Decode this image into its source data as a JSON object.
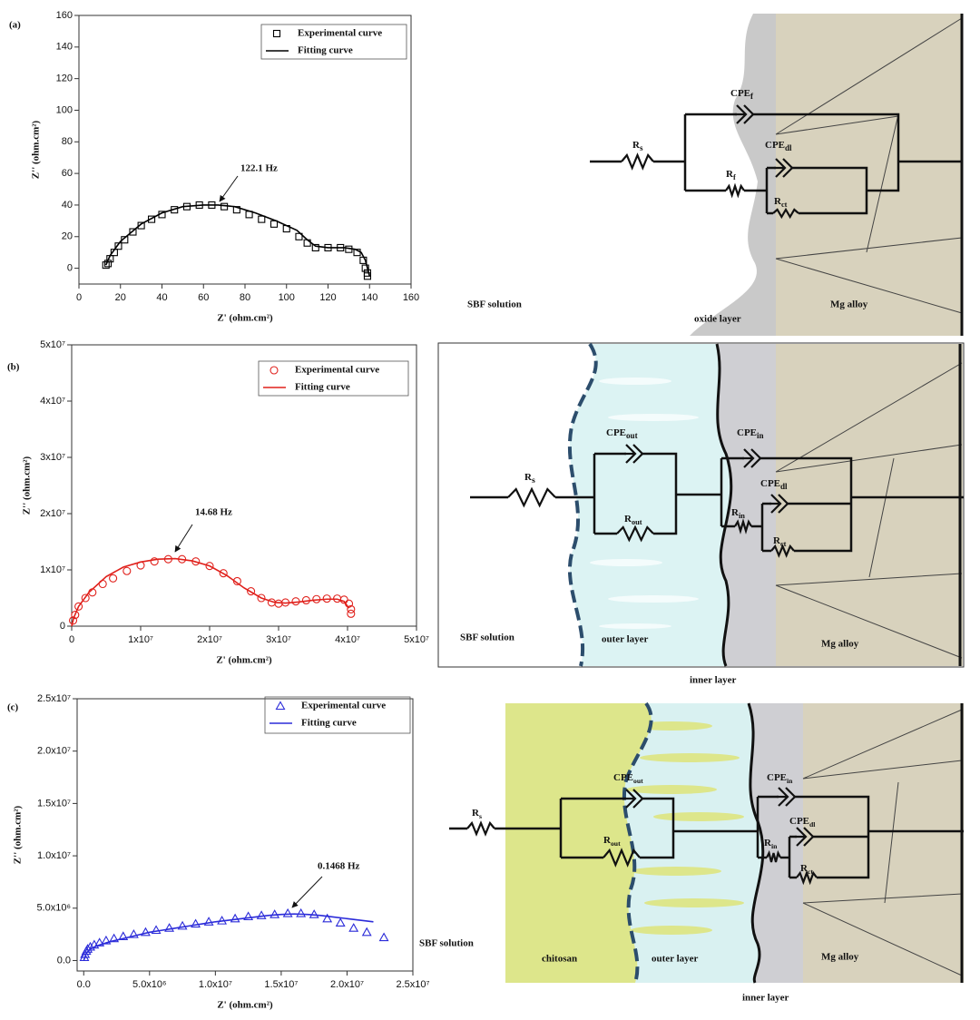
{
  "chart_data": [
    {
      "type": "scatter",
      "panel_label": "(a)",
      "xlabel": "Z' (ohm.cm²)",
      "ylabel": "Z'' (ohm.cm²)",
      "annotation": "122.1 Hz",
      "xlim": [
        0,
        160
      ],
      "ylim": [
        -10,
        160
      ],
      "xticks": [
        0,
        20,
        40,
        60,
        80,
        100,
        120,
        140,
        160
      ],
      "yticks": [
        0,
        20,
        40,
        60,
        80,
        100,
        120,
        140,
        160
      ],
      "legend": "upper right",
      "series": [
        {
          "name": "Experimental curve",
          "color": "#000000",
          "mode": "markers",
          "marker": "square",
          "x": [
            13,
            14,
            15,
            17,
            19,
            22,
            26,
            30,
            35,
            40,
            46,
            52,
            58,
            64,
            70,
            76,
            82,
            88,
            94,
            100,
            106,
            110,
            114,
            120,
            126,
            130,
            134,
            137,
            138,
            139,
            139
          ],
          "values": [
            2,
            3,
            6,
            10,
            14,
            18,
            23,
            27,
            31,
            34,
            37,
            39,
            40,
            40,
            39,
            37,
            34,
            31,
            28,
            25,
            20,
            16,
            13,
            13,
            13,
            12,
            10,
            5,
            0,
            -3,
            -5
          ]
        },
        {
          "name": "Fitting curve",
          "color": "#000000",
          "mode": "line",
          "x": [
            13,
            15,
            20,
            30,
            40,
            50,
            60,
            67,
            75,
            85,
            95,
            105,
            110,
            114,
            120,
            128,
            133,
            136,
            138,
            139,
            140
          ],
          "values": [
            2,
            8,
            17,
            28,
            35,
            39,
            40,
            40,
            39,
            35,
            30,
            24,
            18,
            14,
            13,
            13,
            12,
            10,
            5,
            0,
            -5
          ]
        }
      ]
    },
    {
      "type": "scatter",
      "panel_label": "(b)",
      "xlabel": "Z' (ohm.cm²)",
      "ylabel": "Z'' (ohm.cm²)",
      "annotation": "14.68 Hz",
      "xlim": [
        0,
        50000000.0
      ],
      "ylim": [
        0,
        50000000.0
      ],
      "xticks": [
        0,
        {
          "value": 10000000.0,
          "label": "1x10⁷"
        },
        {
          "value": 20000000.0,
          "label": "2x10⁷"
        },
        {
          "value": 30000000.0,
          "label": "3x10⁷"
        },
        {
          "value": 40000000.0,
          "label": "4x10⁷"
        },
        {
          "value": 50000000.0,
          "label": "5x10⁷"
        }
      ],
      "yticks": [
        0,
        {
          "value": 10000000.0,
          "label": "1x10⁷"
        },
        {
          "value": 20000000.0,
          "label": "2x10⁷"
        },
        {
          "value": 30000000.0,
          "label": "3x10⁷"
        },
        {
          "value": 40000000.0,
          "label": "4x10⁷"
        },
        {
          "value": 50000000.0,
          "label": "5x10⁷"
        }
      ],
      "legend": "upper right",
      "series": [
        {
          "name": "Experimental curve",
          "color": "#e0201b",
          "mode": "markers",
          "marker": "circle",
          "x": [
            200000.0,
            500000.0,
            1000000.0,
            2000000.0,
            3000000.0,
            4500000.0,
            6000000.0,
            8000000.0,
            10000000.0,
            12000000.0,
            14000000.0,
            16000000.0,
            18000000.0,
            20000000.0,
            22000000.0,
            24000000.0,
            26000000.0,
            27500000.0,
            29000000.0,
            30000000.0,
            31000000.0,
            32500000.0,
            34000000.0,
            35500000.0,
            37000000.0,
            38500000.0,
            39500000.0,
            40200000.0,
            40500000.0,
            40500000.0
          ],
          "values": [
            1000000.0,
            2000000.0,
            3500000.0,
            5000000.0,
            6000000.0,
            7500000.0,
            8500000.0,
            9800000.0,
            10800000.0,
            11500000.0,
            11900000.0,
            11900000.0,
            11500000.0,
            10700000.0,
            9400000.0,
            8000000.0,
            6200000.0,
            5000000.0,
            4200000.0,
            4000000.0,
            4200000.0,
            4400000.0,
            4600000.0,
            4800000.0,
            4900000.0,
            4900000.0,
            4700000.0,
            4000000.0,
            3000000.0,
            2200000.0
          ]
        },
        {
          "name": "Fitting curve",
          "color": "#e0201b",
          "mode": "line",
          "x": [
            0,
            300000.0,
            1000000.0,
            2500000.0,
            5000000.0,
            7500000.0,
            10000000.0,
            12500000.0,
            15000000.0,
            17500000.0,
            20000000.0,
            22500000.0,
            25000000.0,
            27500000.0,
            29500000.0,
            31000000.0,
            33000000.0,
            35000000.0,
            37000000.0,
            38500000.0,
            39500000.0,
            40200000.0
          ],
          "values": [
            0,
            1500000.0,
            3500000.0,
            6000000.0,
            8800000.0,
            10500000.0,
            11400000.0,
            11900000.0,
            12000000.0,
            11600000.0,
            10700000.0,
            9000000.0,
            6800000.0,
            5000000.0,
            4200000.0,
            4100000.0,
            4300000.0,
            4600000.0,
            4800000.0,
            4800000.0,
            4400000.0,
            3200000.0
          ]
        }
      ]
    },
    {
      "type": "scatter",
      "panel_label": "(c)",
      "xlabel": "Z' (ohm.cm²)",
      "ylabel": "Z'' (ohm.cm²)",
      "annotation": "0.1468 Hz",
      "xlim": [
        -500000.0,
        25000000.0
      ],
      "ylim": [
        -1000000.0,
        25000000.0
      ],
      "xticks": [
        {
          "value": 0,
          "label": "0.0"
        },
        {
          "value": 5000000.0,
          "label": "5.0x10⁶"
        },
        {
          "value": 10000000.0,
          "label": "1.0x10⁷"
        },
        {
          "value": 15000000.0,
          "label": "1.5x10⁷"
        },
        {
          "value": 20000000.0,
          "label": "2.0x10⁷"
        },
        {
          "value": 25000000.0,
          "label": "2.5x10⁷"
        }
      ],
      "yticks": [
        {
          "value": 0,
          "label": "0.0"
        },
        {
          "value": 5000000.0,
          "label": "5.0x10⁶"
        },
        {
          "value": 10000000.0,
          "label": "1.0x10⁷"
        },
        {
          "value": 15000000.0,
          "label": "1.5x10⁷"
        },
        {
          "value": 20000000.0,
          "label": "2.0x10⁷"
        },
        {
          "value": 25000000.0,
          "label": "2.5x10⁷"
        }
      ],
      "legend": "upper right",
      "series": [
        {
          "name": "Experimental curve",
          "color": "#2b2bd9",
          "mode": "markers",
          "marker": "triangle",
          "x": [
            50000.0,
            100000.0,
            200000.0,
            300000.0,
            500000.0,
            800000.0,
            1200000.0,
            1700000.0,
            2300000.0,
            3000000.0,
            3800000.0,
            4700000.0,
            5500000.0,
            6500000.0,
            7500000.0,
            8500000.0,
            9500000.0,
            10500000.0,
            11500000.0,
            12500000.0,
            13500000.0,
            14500000.0,
            15500000.0,
            16500000.0,
            17500000.0,
            18500000.0,
            19500000.0,
            20500000.0,
            21500000.0,
            22800000.0
          ],
          "values": [
            300000.0,
            600000.0,
            900000.0,
            1100000.0,
            1300000.0,
            1500000.0,
            1700000.0,
            1900000.0,
            2100000.0,
            2300000.0,
            2500000.0,
            2700000.0,
            2900000.0,
            3100000.0,
            3300000.0,
            3500000.0,
            3700000.0,
            3800000.0,
            4000000.0,
            4200000.0,
            4300000.0,
            4400000.0,
            4500000.0,
            4500000.0,
            4400000.0,
            4000000.0,
            3600000.0,
            3100000.0,
            2700000.0,
            2200000.0
          ]
        },
        {
          "name": "Fitting curve",
          "color": "#2b2bd9",
          "mode": "line",
          "x": [
            0,
            200000.0,
            500000.0,
            1000000.0,
            2000000.0,
            3000000.0,
            4000000.0,
            5000000.0,
            6000000.0,
            7000000.0,
            8000000.0,
            9000000.0,
            10000000.0,
            11000000.0,
            12000000.0,
            13000000.0,
            14000000.0,
            15000000.0,
            16000000.0,
            17000000.0,
            18000000.0,
            19000000.0,
            20000000.0,
            21000000.0,
            22000000.0
          ],
          "values": [
            0,
            700000.0,
            1100000.0,
            1400000.0,
            1800000.0,
            2100000.0,
            2400000.0,
            2700000.0,
            2900000.0,
            3100000.0,
            3300000.0,
            3500000.0,
            3700000.0,
            3850000.0,
            4000000.0,
            4150000.0,
            4300000.0,
            4400000.0,
            4450000.0,
            4400000.0,
            4300000.0,
            4150000.0,
            4000000.0,
            3850000.0,
            3700000.0
          ]
        }
      ]
    }
  ],
  "diagrams": [
    {
      "layers": [
        "SBF solution",
        "oxide layer",
        "Mg alloy"
      ],
      "elements": [
        {
          "main": "R",
          "sub": "s"
        },
        {
          "main": "CPE",
          "sub": "f"
        },
        {
          "main": "CPE",
          "sub": "dl"
        },
        {
          "main": "R",
          "sub": "f"
        },
        {
          "main": "R",
          "sub": "ct"
        }
      ]
    },
    {
      "layers": [
        "SBF solution",
        "outer layer",
        "inner layer",
        "Mg alloy"
      ],
      "elements": [
        {
          "main": "R",
          "sub": "s"
        },
        {
          "main": "CPE",
          "sub": "out"
        },
        {
          "main": "R",
          "sub": "out"
        },
        {
          "main": "CPE",
          "sub": "in"
        },
        {
          "main": "CPE",
          "sub": "dl"
        },
        {
          "main": "R",
          "sub": "in"
        },
        {
          "main": "R",
          "sub": "ct"
        }
      ]
    },
    {
      "layers": [
        "SBF solution",
        "chitosan",
        "outer layer",
        "inner layer",
        "Mg alloy"
      ],
      "elements": [
        {
          "main": "R",
          "sub": "s"
        },
        {
          "main": "CPE",
          "sub": "out"
        },
        {
          "main": "R",
          "sub": "out"
        },
        {
          "main": "CPE",
          "sub": "in"
        },
        {
          "main": "CPE",
          "sub": "dl"
        },
        {
          "main": "R",
          "sub": "in"
        },
        {
          "main": "R",
          "sub": "ct"
        }
      ]
    }
  ]
}
